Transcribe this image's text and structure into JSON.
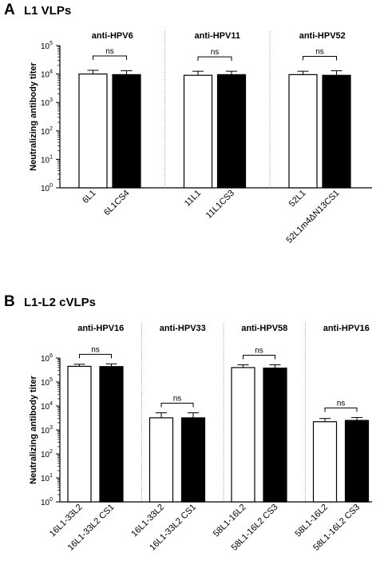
{
  "chart_data": [
    {
      "type": "bar",
      "panel": "A",
      "title": "L1 VLPs",
      "ylabel": "Neutralizing antibody titer",
      "yscale": "log",
      "ylim": [
        1,
        100000
      ],
      "yticks": [
        {
          "base": "10",
          "exp": "0"
        },
        {
          "base": "10",
          "exp": "1"
        },
        {
          "base": "10",
          "exp": "2"
        },
        {
          "base": "10",
          "exp": "3"
        },
        {
          "base": "10",
          "exp": "4"
        },
        {
          "base": "10",
          "exp": "5"
        }
      ],
      "fills": [
        "#ffffff",
        "#000000"
      ],
      "groups": [
        {
          "label": "anti-HPV6",
          "categories": [
            "6L1",
            "6L1CS4"
          ],
          "values": [
            10000,
            9500
          ],
          "errors": [
            3500,
            3500
          ],
          "annotation": "ns"
        },
        {
          "label": "anti-HPV11",
          "categories": [
            "11L1",
            "11L1CS3"
          ],
          "values": [
            9000,
            9500
          ],
          "errors": [
            3500,
            3000
          ],
          "annotation": "ns"
        },
        {
          "label": "anti-HPV52",
          "categories": [
            "52L1",
            "52L1m4ΔN13CS1"
          ],
          "values": [
            9500,
            9000
          ],
          "errors": [
            3000,
            4000
          ],
          "annotation": "ns"
        }
      ]
    },
    {
      "type": "bar",
      "panel": "B",
      "title": "L1-L2 cVLPs",
      "ylabel": "Neutralizing antibody titer",
      "yscale": "log",
      "ylim": [
        1,
        1000000
      ],
      "yticks": [
        {
          "base": "10",
          "exp": "0"
        },
        {
          "base": "10",
          "exp": "1"
        },
        {
          "base": "10",
          "exp": "2"
        },
        {
          "base": "10",
          "exp": "3"
        },
        {
          "base": "10",
          "exp": "4"
        },
        {
          "base": "10",
          "exp": "5"
        },
        {
          "base": "10",
          "exp": "6"
        }
      ],
      "fills": [
        "#ffffff",
        "#000000"
      ],
      "groups": [
        {
          "label": "anti-HPV16",
          "categories": [
            "16L1-33L2",
            "16L1-33L2 CS1"
          ],
          "values": [
            450000,
            440000
          ],
          "errors": [
            100000,
            130000
          ],
          "annotation": "ns"
        },
        {
          "label": "anti-HPV33",
          "categories": [
            "16L1-33L2",
            "16L1-33L2 CS1"
          ],
          "values": [
            3200,
            3200
          ],
          "errors": [
            2000,
            2000
          ],
          "annotation": "ns"
        },
        {
          "label": "anti-HPV58",
          "categories": [
            "58L1-16L2",
            "58L1-16L2 CS3"
          ],
          "values": [
            400000,
            380000
          ],
          "errors": [
            120000,
            140000
          ],
          "annotation": "ns"
        },
        {
          "label": "anti-HPV16",
          "categories": [
            "58L1-16L2",
            "58L1-16L2 CS3"
          ],
          "values": [
            2200,
            2500
          ],
          "errors": [
            800,
            800
          ],
          "annotation": "ns"
        }
      ]
    }
  ]
}
